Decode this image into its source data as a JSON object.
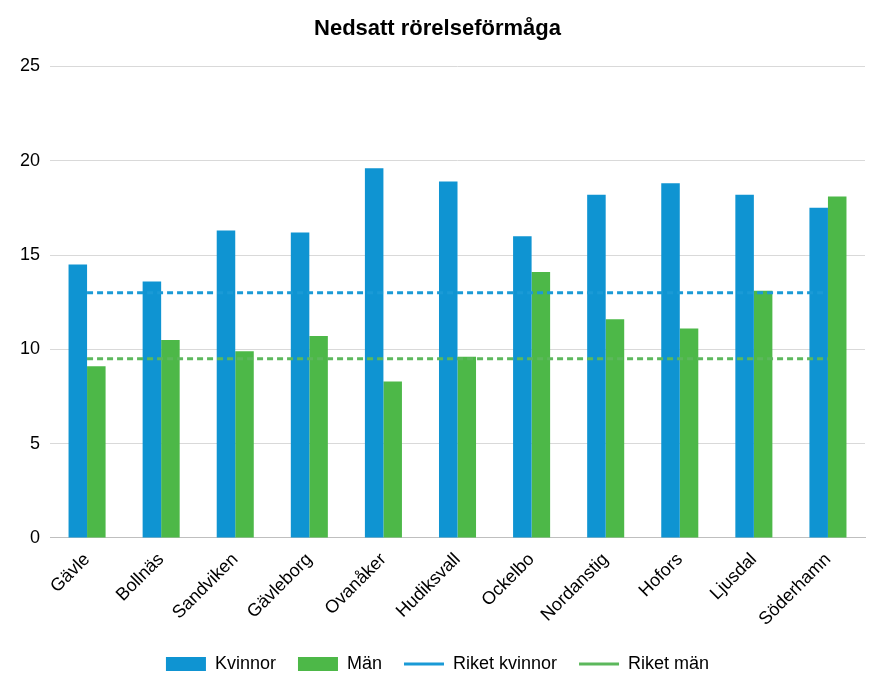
{
  "chart_data": {
    "type": "bar",
    "title": "Nedsatt rörelseförmåga",
    "categories": [
      "Gävle",
      "Bollnäs",
      "Sandviken",
      "Gävleborg",
      "Ovanåker",
      "Hudiksvall",
      "Ockelbo",
      "Nordanstig",
      "Hofors",
      "Ljusdal",
      "Söderhamn"
    ],
    "series": [
      {
        "name": "Kvinnor",
        "type": "bar",
        "color": "#0f94d2",
        "values": [
          14.5,
          13.6,
          16.3,
          16.2,
          19.6,
          18.9,
          16.0,
          18.2,
          18.8,
          18.2,
          17.5
        ]
      },
      {
        "name": "Män",
        "type": "bar",
        "color": "#4db848",
        "values": [
          9.1,
          10.5,
          9.9,
          10.7,
          8.3,
          9.6,
          14.1,
          11.6,
          11.1,
          13.1,
          18.1
        ]
      },
      {
        "name": "Riket kvinnor",
        "type": "line",
        "line_style": "dashed",
        "color": "#1a9ad6",
        "values": [
          13.0,
          13.0,
          13.0,
          13.0,
          13.0,
          13.0,
          13.0,
          13.0,
          13.0,
          13.0,
          13.0
        ]
      },
      {
        "name": "Riket män",
        "type": "line",
        "line_style": "dashed",
        "color": "#5cb85c",
        "values": [
          9.5,
          9.5,
          9.5,
          9.5,
          9.5,
          9.5,
          9.5,
          9.5,
          9.5,
          9.5,
          9.5
        ]
      }
    ],
    "ylim": [
      0,
      25
    ],
    "yticks": [
      0,
      5,
      10,
      15,
      20,
      25
    ],
    "grid": true,
    "legend": "bottom"
  }
}
